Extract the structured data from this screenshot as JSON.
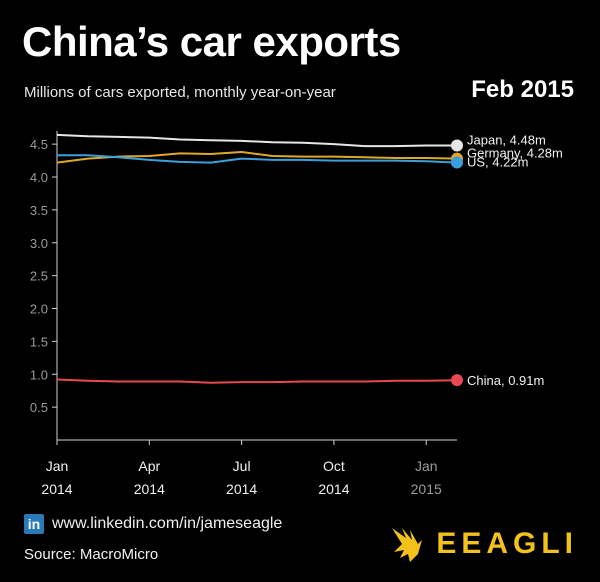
{
  "header": {
    "title": "China’s car exports",
    "subtitle": "Millions of cars exported, monthly year-on-year",
    "date": "Feb 2015"
  },
  "footer": {
    "linkedin_icon": "in",
    "link": "www.linkedin.com/in/jameseagle",
    "source": "Source: MacroMicro",
    "brand": "EEAGLI",
    "brand_icon": "eagle-logo-icon"
  },
  "colors": {
    "background": "#000000",
    "japan": "#e6e6e6",
    "germany": "#e0a829",
    "us": "#3aa0dd",
    "china": "#e8484f",
    "brand": "#f2c21b"
  },
  "chart_data": {
    "type": "line",
    "title": "China’s car exports",
    "ylabel": "",
    "xlabel": "",
    "ylim": [
      0,
      4.7
    ],
    "y_ticks": [
      0.5,
      1.0,
      1.5,
      2.0,
      2.5,
      3.0,
      3.5,
      4.0,
      4.5
    ],
    "x_tick_labels": [
      {
        "month": "Jan",
        "year": "2014",
        "index": 0
      },
      {
        "month": "Apr",
        "year": "2014",
        "index": 3
      },
      {
        "month": "Jul",
        "year": "2014",
        "index": 6
      },
      {
        "month": "Oct",
        "year": "2014",
        "index": 9
      },
      {
        "month": "Jan",
        "year": "2015",
        "index": 12
      }
    ],
    "x": [
      "Jan 2014",
      "Feb 2014",
      "Mar 2014",
      "Apr 2014",
      "May 2014",
      "Jun 2014",
      "Jul 2014",
      "Aug 2014",
      "Sep 2014",
      "Oct 2014",
      "Nov 2014",
      "Dec 2014",
      "Jan 2015",
      "Feb 2015"
    ],
    "grid": false,
    "series": [
      {
        "name": "Japan",
        "end_label": "Japan, 4.48m",
        "color": "#e6e6e6",
        "values": [
          4.64,
          4.62,
          4.61,
          4.6,
          4.57,
          4.56,
          4.55,
          4.53,
          4.52,
          4.5,
          4.47,
          4.47,
          4.48,
          4.48
        ]
      },
      {
        "name": "Germany",
        "end_label": "Germany, 4.28m",
        "color": "#e0a829",
        "values": [
          4.22,
          4.28,
          4.31,
          4.32,
          4.36,
          4.35,
          4.38,
          4.32,
          4.31,
          4.31,
          4.3,
          4.29,
          4.29,
          4.28
        ]
      },
      {
        "name": "US",
        "end_label": "US, 4.22m",
        "color": "#3aa0dd",
        "values": [
          4.33,
          4.33,
          4.3,
          4.26,
          4.23,
          4.22,
          4.28,
          4.26,
          4.26,
          4.25,
          4.25,
          4.25,
          4.24,
          4.22
        ]
      },
      {
        "name": "China",
        "end_label": "China, 0.91m",
        "color": "#e8484f",
        "values": [
          0.92,
          0.9,
          0.89,
          0.89,
          0.89,
          0.87,
          0.88,
          0.88,
          0.89,
          0.89,
          0.89,
          0.9,
          0.9,
          0.91
        ]
      }
    ]
  }
}
